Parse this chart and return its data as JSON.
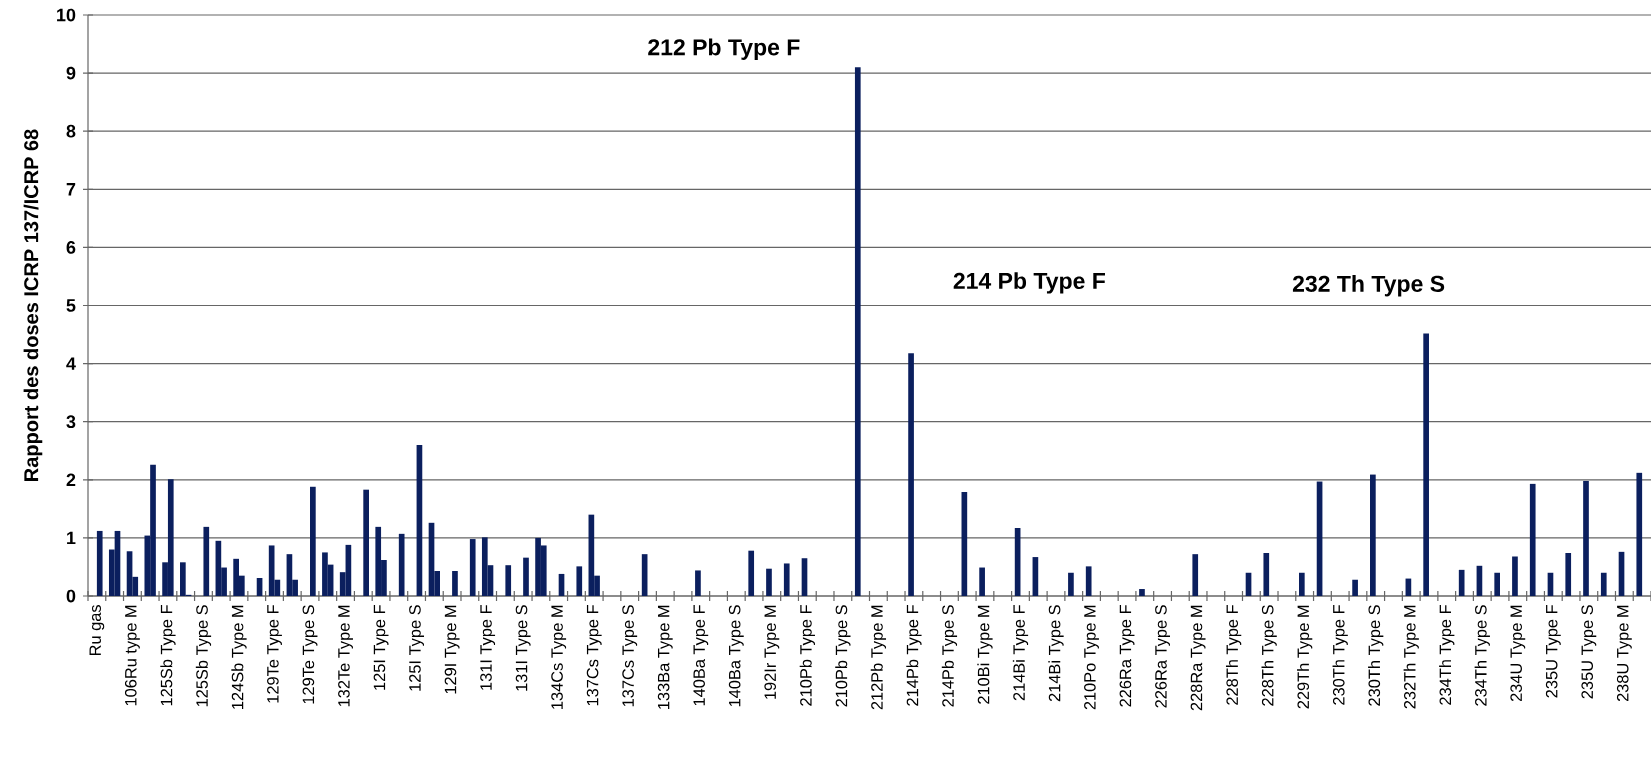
{
  "chart_data": {
    "type": "bar",
    "ylabel": "Rapport des doses ICRP 137/ICRP 68",
    "categories": [
      "Ru gas",
      null,
      "106Ru type M",
      null,
      "125Sb Type F",
      null,
      "125Sb Type S",
      null,
      "124Sb Type M",
      null,
      "129Te Type F",
      null,
      "129Te Type S",
      null,
      "132Te Type M",
      null,
      "125I Type F",
      null,
      "125I Type S",
      null,
      "129I Type M",
      null,
      "131I Type F",
      null,
      "131I Type S",
      null,
      "134Cs Type M",
      null,
      "137Cs Type F",
      null,
      "137Cs Type S",
      null,
      "133Ba Type M",
      null,
      "140Ba Type F",
      null,
      "140Ba Type S",
      null,
      "192Ir Type M",
      null,
      "210Pb Type F",
      null,
      "210Pb Type S",
      null,
      "212Pb Type M",
      null,
      "214Pb Type F",
      null,
      "214Pb Type S",
      null,
      "210Bi Type M",
      null,
      "214Bi Type F",
      null,
      "214Bi Type S",
      null,
      "210Po Type M",
      null,
      "226Ra Type F",
      null,
      "226Ra Type S",
      null,
      "228Ra Type M",
      null,
      "228Th Type F",
      null,
      "228Th Type S",
      null,
      "229Th Type M",
      null,
      "230Th Type F",
      null,
      "230Th Type S",
      null,
      "232Th Type M",
      null,
      "234Th Type F",
      null,
      "234Th Type S",
      null,
      "234U Type M",
      null,
      "235U Type F",
      null,
      "235U Type S",
      null,
      "238U Type M",
      null
    ],
    "series": [
      {
        "color": "#0b1f5e",
        "values": [
          null,
          0.8,
          0.77,
          1.04,
          0.58,
          0.58,
          null,
          0.95,
          0.64,
          null,
          0.87,
          0.72,
          null,
          0.75,
          0.41,
          null,
          1.19,
          null,
          null,
          1.26,
          null,
          null,
          1.01,
          null,
          null,
          1.0,
          null,
          null,
          1.4,
          null,
          null,
          0.72,
          null,
          null,
          0.44,
          null,
          null,
          0.78,
          0.47,
          0.56,
          0.65,
          null,
          null,
          9.1,
          null,
          null,
          4.18,
          null,
          null,
          1.79,
          0.49,
          null,
          1.17,
          0.67,
          null,
          0.4,
          0.51,
          null,
          null,
          0.12,
          null,
          null,
          0.72,
          null,
          null,
          0.4,
          0.74,
          null,
          0.4,
          1.97,
          null,
          0.28,
          2.09,
          null,
          0.3,
          4.52,
          null,
          0.45,
          0.52,
          0.4,
          0.68,
          1.93,
          0.4,
          0.74,
          1.98,
          0.4,
          0.76,
          2.12
        ]
      },
      {
        "color": "#0b1f5e",
        "values": [
          1.12,
          1.12,
          0.33,
          2.26,
          2.01,
          0.02,
          1.19,
          0.49,
          0.35,
          0.31,
          0.28,
          0.28,
          1.88,
          0.54,
          0.88,
          1.83,
          0.62,
          1.07,
          2.6,
          0.43,
          0.43,
          0.98,
          0.53,
          0.53,
          0.66,
          0.87,
          0.38,
          0.51,
          0.35,
          null,
          null,
          null,
          null,
          null,
          null,
          null,
          null,
          null,
          null,
          null,
          null,
          null,
          null,
          null,
          null,
          null,
          null,
          null,
          null,
          null,
          null,
          null,
          null,
          null,
          null,
          null,
          null,
          null,
          null,
          null,
          null,
          null,
          null,
          null,
          null,
          null,
          null,
          null,
          null,
          null,
          null,
          null,
          null,
          null,
          null,
          null,
          null,
          null,
          null,
          null,
          null,
          null,
          null,
          null,
          null,
          null,
          null,
          null
        ]
      }
    ],
    "ylim": [
      0,
      10
    ],
    "yticks": [
      0,
      1,
      2,
      3,
      4,
      5,
      6,
      7,
      8,
      9,
      10
    ],
    "grid": "y",
    "annotations": [
      "212 Pb Type F",
      "214 Pb Type F",
      "232 Th Type S"
    ]
  }
}
